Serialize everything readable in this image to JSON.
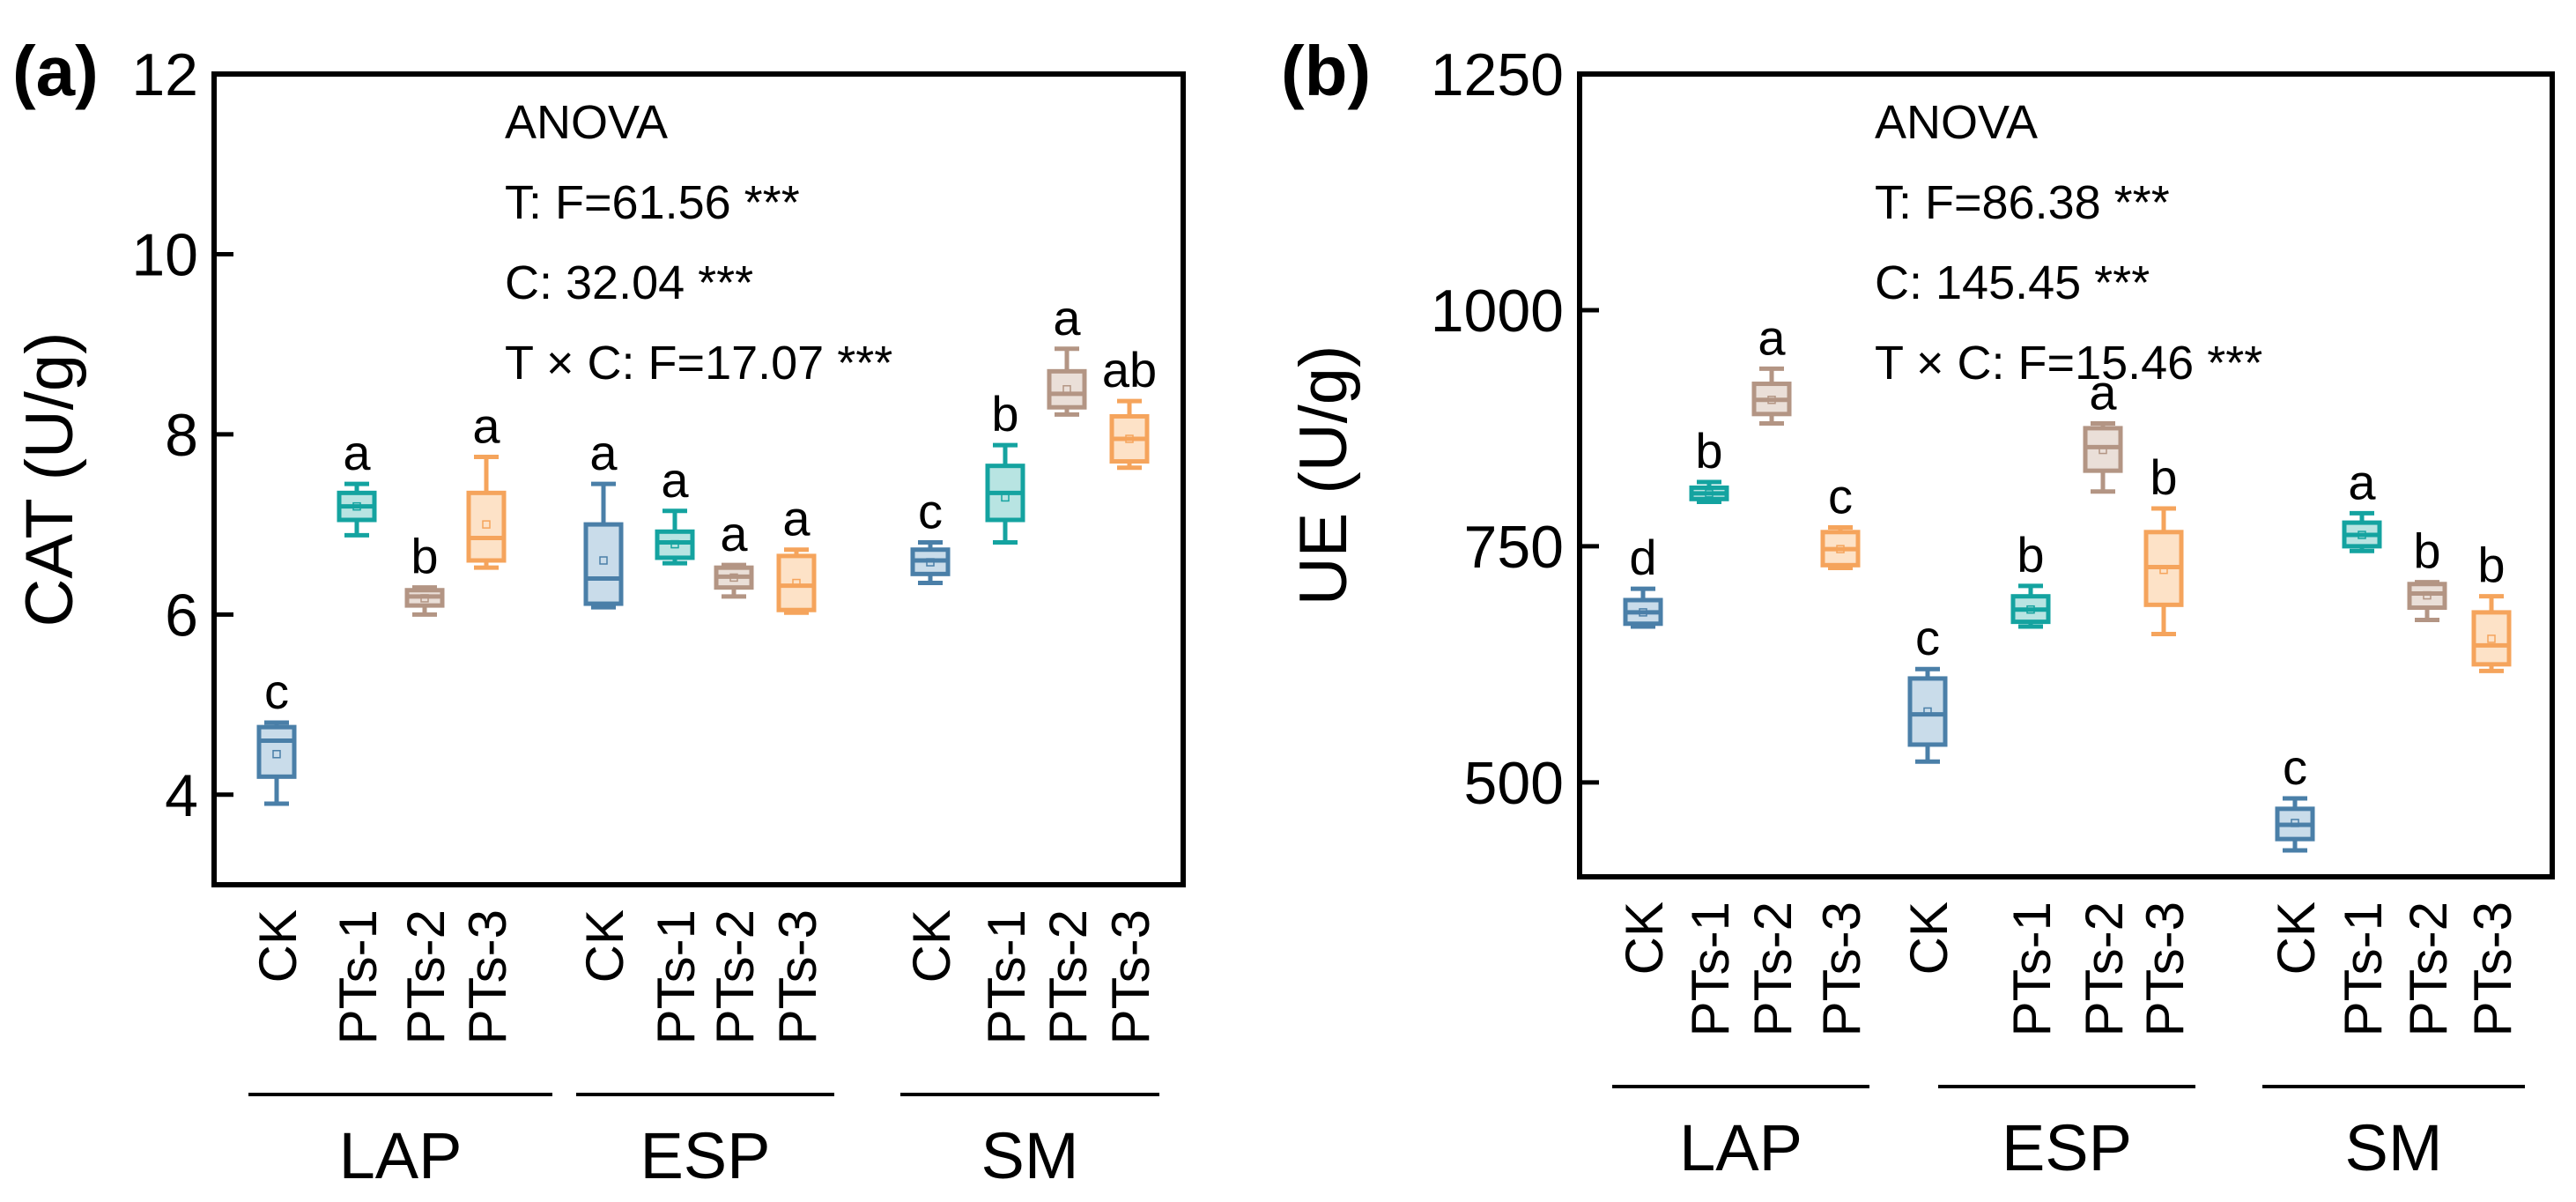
{
  "chart_data": [
    {
      "panel": "(a)",
      "type": "box",
      "ylabel": "CAT (U/g)",
      "ylim": [
        3,
        12
      ],
      "yticks": [
        "4",
        "6",
        "8",
        "10",
        "12"
      ],
      "anova": [
        "ANOVA",
        "T: F=61.56 ***",
        "C: 32.04 ***",
        "T × C: F=17.07 ***"
      ],
      "groups": [
        {
          "name": "LAP",
          "boxes": [
            {
              "label": "CK",
              "min": 3.9,
              "q1": 4.2,
              "median": 4.6,
              "q3": 4.75,
              "max": 4.8,
              "mean": 4.45,
              "letter": "c"
            },
            {
              "label": "PTs-1",
              "min": 6.88,
              "q1": 7.05,
              "median": 7.2,
              "q3": 7.35,
              "max": 7.45,
              "mean": 7.2,
              "letter": "a"
            },
            {
              "label": "PTs-2",
              "min": 6.0,
              "q1": 6.1,
              "median": 6.2,
              "q3": 6.27,
              "max": 6.3,
              "mean": 6.18,
              "letter": "b"
            },
            {
              "label": "PTs-3",
              "min": 6.52,
              "q1": 6.6,
              "median": 6.85,
              "q3": 7.35,
              "max": 7.75,
              "mean": 7.0,
              "letter": "a"
            }
          ]
        },
        {
          "name": "ESP",
          "boxes": [
            {
              "label": "CK",
              "min": 6.08,
              "q1": 6.12,
              "median": 6.4,
              "q3": 7.0,
              "max": 7.45,
              "mean": 6.6,
              "letter": "a"
            },
            {
              "label": "PTs-1",
              "min": 6.57,
              "q1": 6.63,
              "median": 6.8,
              "q3": 6.92,
              "max": 7.15,
              "mean": 6.78,
              "letter": "a"
            },
            {
              "label": "PTs-2",
              "min": 6.2,
              "q1": 6.3,
              "median": 6.42,
              "q3": 6.52,
              "max": 6.55,
              "mean": 6.41,
              "letter": "a"
            },
            {
              "label": "PTs-3",
              "min": 6.02,
              "q1": 6.05,
              "median": 6.32,
              "q3": 6.65,
              "max": 6.72,
              "mean": 6.35,
              "letter": "a"
            }
          ]
        },
        {
          "name": "SM",
          "boxes": [
            {
              "label": "CK",
              "min": 6.35,
              "q1": 6.45,
              "median": 6.6,
              "q3": 6.72,
              "max": 6.8,
              "mean": 6.58,
              "letter": "c"
            },
            {
              "label": "PTs-1",
              "min": 6.8,
              "q1": 7.05,
              "median": 7.35,
              "q3": 7.65,
              "max": 7.88,
              "mean": 7.3,
              "letter": "b"
            },
            {
              "label": "PTs-2",
              "min": 8.22,
              "q1": 8.3,
              "median": 8.45,
              "q3": 8.7,
              "max": 8.95,
              "mean": 8.5,
              "letter": "a"
            },
            {
              "label": "PTs-3",
              "min": 7.63,
              "q1": 7.7,
              "median": 7.95,
              "q3": 8.2,
              "max": 8.37,
              "mean": 7.95,
              "letter": "ab"
            }
          ]
        }
      ]
    },
    {
      "panel": "(b)",
      "type": "box",
      "ylabel": "UE (U/g)",
      "ylim": [
        400,
        1250
      ],
      "yticks": [
        "500",
        "750",
        "1000",
        "1250"
      ],
      "anova": [
        "ANOVA",
        "T: F=86.38 ***",
        "C: 145.45 ***",
        "T × C: F=15.46 ***"
      ],
      "groups": [
        {
          "name": "LAP",
          "boxes": [
            {
              "label": "CK",
              "min": 665,
              "q1": 668,
              "median": 680,
              "q3": 693,
              "max": 705,
              "mean": 680,
              "letter": "d"
            },
            {
              "label": "PTs-1",
              "min": 797,
              "q1": 800,
              "median": 806,
              "q3": 812,
              "max": 818,
              "mean": 806,
              "letter": "b"
            },
            {
              "label": "PTs-2",
              "min": 880,
              "q1": 890,
              "median": 905,
              "q3": 922,
              "max": 938,
              "mean": 905,
              "letter": "a"
            },
            {
              "label": "PTs-3",
              "min": 727,
              "q1": 730,
              "median": 747,
              "q3": 765,
              "max": 770,
              "mean": 747,
              "letter": "c"
            }
          ]
        },
        {
          "name": "ESP",
          "boxes": [
            {
              "label": "CK",
              "min": 522,
              "q1": 540,
              "median": 572,
              "q3": 610,
              "max": 620,
              "mean": 575,
              "letter": "c"
            },
            {
              "label": "PTs-1",
              "min": 665,
              "q1": 670,
              "median": 683,
              "q3": 697,
              "max": 708,
              "mean": 683,
              "letter": "b"
            },
            {
              "label": "PTs-2",
              "min": 808,
              "q1": 830,
              "median": 855,
              "q3": 875,
              "max": 880,
              "mean": 852,
              "letter": "a"
            },
            {
              "label": "PTs-3",
              "min": 657,
              "q1": 688,
              "median": 728,
              "q3": 765,
              "max": 790,
              "mean": 725,
              "letter": "b"
            }
          ]
        },
        {
          "name": "SM",
          "boxes": [
            {
              "label": "CK",
              "min": 428,
              "q1": 440,
              "median": 455,
              "q3": 472,
              "max": 483,
              "mean": 457,
              "letter": "c"
            },
            {
              "label": "PTs-1",
              "min": 745,
              "q1": 750,
              "median": 762,
              "q3": 775,
              "max": 785,
              "mean": 762,
              "letter": "a"
            },
            {
              "label": "PTs-2",
              "min": 672,
              "q1": 685,
              "median": 700,
              "q3": 710,
              "max": 712,
              "mean": 698,
              "letter": "b"
            },
            {
              "label": "PTs-3",
              "min": 618,
              "q1": 625,
              "median": 645,
              "q3": 680,
              "max": 697,
              "mean": 652,
              "letter": "b"
            }
          ]
        }
      ]
    }
  ],
  "colors": {
    "CK": {
      "stroke": "#4a7fa8",
      "fill": "#c9dcea"
    },
    "PTs-1": {
      "stroke": "#14a3a0",
      "fill": "#b8e4e2"
    },
    "PTs-2": {
      "stroke": "#b39584",
      "fill": "#eadfd8"
    },
    "PTs-3": {
      "stroke": "#f5a45c",
      "fill": "#fde2c7"
    }
  }
}
